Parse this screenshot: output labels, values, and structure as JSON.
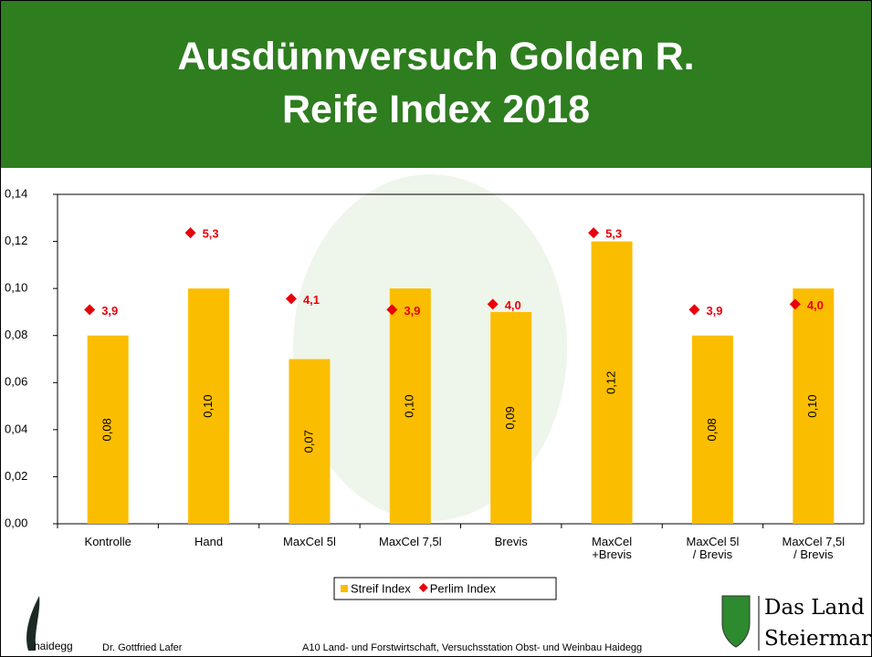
{
  "chart_data": {
    "type": "bar",
    "title": "Ausdünnversuch Golden R.\nReife Index 2018",
    "categories": [
      "Kontrolle",
      "Hand",
      "MaxCel 5l",
      "MaxCel 7,5l",
      "Brevis",
      "MaxCel\n+Brevis",
      "MaxCel 5l\n/ Brevis",
      "MaxCel 7,5l\n/ Brevis"
    ],
    "series": [
      {
        "name": "Streif Index",
        "type": "bar",
        "color": "#fbbd00",
        "values": [
          0.08,
          0.1,
          0.07,
          0.1,
          0.09,
          0.12,
          0.08,
          0.1
        ],
        "value_labels": [
          "0,08",
          "0,10",
          "0,07",
          "0,10",
          "0,09",
          "0,12",
          "0,08",
          "0,10"
        ]
      },
      {
        "name": "Perlim Index",
        "type": "scatter",
        "axis": "y2",
        "color": "#e8000b",
        "values": [
          3.9,
          5.3,
          4.1,
          3.9,
          4.0,
          5.3,
          3.9,
          4.0
        ],
        "value_labels": [
          "3,9",
          "5,3",
          "4,1",
          "3,9",
          "4,0",
          "5,3",
          "3,9",
          "4,0"
        ]
      }
    ],
    "ylim": [
      0,
      0.14
    ],
    "yticks": [
      {
        "value": 0,
        "label": "0,00"
      },
      {
        "value": 0.02,
        "label": "0,02"
      },
      {
        "value": 0.04,
        "label": "0,04"
      },
      {
        "value": 0.06,
        "label": "0,06"
      },
      {
        "value": 0.08,
        "label": "0,08"
      },
      {
        "value": 0.1,
        "label": "0,10"
      },
      {
        "value": 0.12,
        "label": "0,12"
      },
      {
        "value": 0.14,
        "label": "0,14"
      }
    ],
    "y2lim": [
      0,
      6
    ],
    "legend": "bottom"
  },
  "footer": {
    "logo_text": "haidegg",
    "author": "Dr. Gottfried Lafer",
    "institution": "A10 Land- und Forstwirtschaft, Versuchsstation Obst- und Weinbau Haidegg",
    "brand_line1": "Das Land",
    "brand_line2": "Steiermark"
  }
}
